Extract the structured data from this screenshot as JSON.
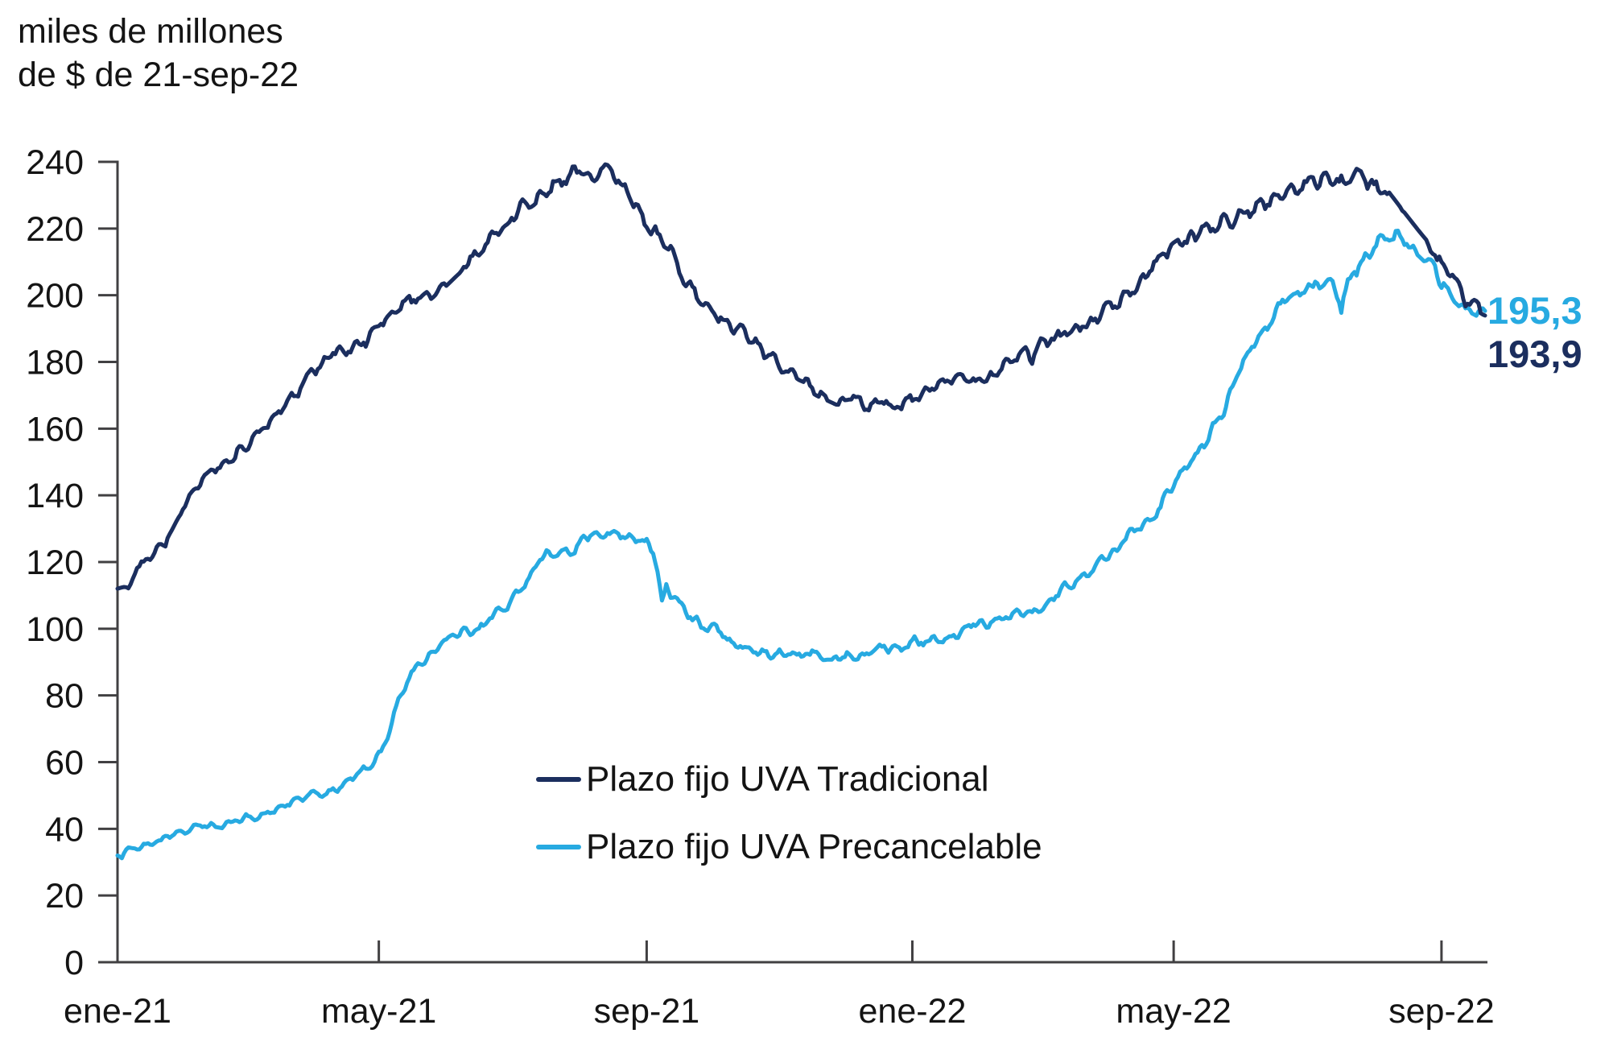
{
  "title": {
    "line1": "miles de millones",
    "line2": "de $ de 21-sep-22"
  },
  "colors": {
    "tradicional": "#1B2E5E",
    "precancelable": "#27AAE1",
    "axis": "#414042",
    "text": "#141414"
  },
  "legend": {
    "items": [
      {
        "id": "tradicional",
        "label": "Plazo fijo UVA Tradicional",
        "color": "#1B2E5E"
      },
      {
        "id": "precancelable",
        "label": "Plazo fijo UVA Precancelable",
        "color": "#27AAE1"
      }
    ]
  },
  "end_labels": {
    "precancelable": {
      "text": "195,3",
      "color": "#27AAE1"
    },
    "tradicional": {
      "text": "193,9",
      "color": "#1B2E5E"
    }
  },
  "chart_data": {
    "type": "line",
    "title": "miles de millones de $ de 21-sep-22",
    "x_unit": "days since 2021-01-01 (daily series ending 2022-09-21)",
    "ylim": [
      0,
      240
    ],
    "y_tick_step": 20,
    "y_tick_labels": [
      "0",
      "20",
      "40",
      "60",
      "80",
      "100",
      "120",
      "140",
      "160",
      "180",
      "200",
      "220",
      "240"
    ],
    "x_ticks": [
      {
        "label": "ene-21",
        "day": 0
      },
      {
        "label": "may-21",
        "day": 120
      },
      {
        "label": "sep-21",
        "day": 243
      },
      {
        "label": "ene-22",
        "day": 365
      },
      {
        "label": "may-22",
        "day": 485
      },
      {
        "label": "sep-22",
        "day": 608
      }
    ],
    "end_day": 628,
    "grid": false,
    "legend_position": "inside-bottom-center",
    "series": [
      {
        "name": "Plazo fijo UVA Precancelable",
        "id": "precancelable",
        "color": "#27AAE1",
        "final_value": 195.3,
        "points": [
          [
            0,
            32
          ],
          [
            2,
            31.5
          ],
          [
            4,
            34
          ],
          [
            8,
            35
          ],
          [
            15,
            36
          ],
          [
            22,
            37
          ],
          [
            31,
            38
          ],
          [
            38,
            39.5
          ],
          [
            45,
            40.5
          ],
          [
            52,
            42
          ],
          [
            59,
            43
          ],
          [
            66,
            44.5
          ],
          [
            73,
            46
          ],
          [
            80,
            48
          ],
          [
            87,
            49.5
          ],
          [
            93,
            51
          ],
          [
            100,
            53
          ],
          [
            107,
            55
          ],
          [
            113,
            57
          ],
          [
            118,
            59
          ],
          [
            121,
            62
          ],
          [
            124,
            68
          ],
          [
            127,
            74
          ],
          [
            130,
            80
          ],
          [
            133,
            85
          ],
          [
            136,
            88
          ],
          [
            140,
            90
          ],
          [
            145,
            92
          ],
          [
            151,
            95
          ],
          [
            158,
            98
          ],
          [
            165,
            101
          ],
          [
            172,
            104
          ],
          [
            180,
            108
          ],
          [
            187,
            112
          ],
          [
            190,
            116
          ],
          [
            194,
            120
          ],
          [
            199,
            122
          ],
          [
            205,
            124
          ],
          [
            212,
            126
          ],
          [
            219,
            127.5
          ],
          [
            224,
            128.5
          ],
          [
            228,
            129
          ],
          [
            232,
            128
          ],
          [
            236,
            127.5
          ],
          [
            240,
            127
          ],
          [
            243,
            126.5
          ],
          [
            246,
            124
          ],
          [
            248,
            118
          ],
          [
            250,
            109
          ],
          [
            252,
            114
          ],
          [
            254,
            112
          ],
          [
            258,
            109
          ],
          [
            262,
            106
          ],
          [
            266,
            103
          ],
          [
            271,
            100
          ],
          [
            276,
            98
          ],
          [
            281,
            96
          ],
          [
            287,
            94
          ],
          [
            293,
            93
          ],
          [
            300,
            92
          ],
          [
            307,
            91.5
          ],
          [
            314,
            92
          ],
          [
            321,
            92.5
          ],
          [
            330,
            93
          ],
          [
            340,
            93.5
          ],
          [
            350,
            94
          ],
          [
            358,
            94.5
          ],
          [
            365,
            95.5
          ],
          [
            372,
            96.5
          ],
          [
            379,
            97.5
          ],
          [
            386,
            99
          ],
          [
            393,
            100.5
          ],
          [
            400,
            102
          ],
          [
            407,
            104
          ],
          [
            414,
            105.5
          ],
          [
            420,
            107
          ],
          [
            424,
            108
          ],
          [
            431,
            111
          ],
          [
            438,
            114
          ],
          [
            445,
            118
          ],
          [
            452,
            122
          ],
          [
            459,
            126
          ],
          [
            466,
            130
          ],
          [
            473,
            134
          ],
          [
            478,
            137
          ],
          [
            485,
            143
          ],
          [
            490,
            148
          ],
          [
            495,
            153
          ],
          [
            500,
            158
          ],
          [
            505,
            163
          ],
          [
            510,
            169
          ],
          [
            515,
            178
          ],
          [
            520,
            184
          ],
          [
            525,
            189
          ],
          [
            530,
            193
          ],
          [
            535,
            196
          ],
          [
            540,
            198
          ],
          [
            545,
            200
          ],
          [
            550,
            202
          ],
          [
            553,
            203
          ],
          [
            556,
            205
          ],
          [
            559,
            203
          ],
          [
            562,
            197
          ],
          [
            564,
            202
          ],
          [
            567,
            206
          ],
          [
            570,
            208
          ],
          [
            574,
            211
          ],
          [
            578,
            214
          ],
          [
            582,
            216.5
          ],
          [
            585,
            218
          ],
          [
            588,
            219
          ],
          [
            592,
            217.5
          ],
          [
            596,
            215.5
          ],
          [
            600,
            213
          ],
          [
            604,
            209
          ],
          [
            608,
            205
          ],
          [
            612,
            202
          ],
          [
            616,
            199.5
          ],
          [
            620,
            198
          ],
          [
            623,
            197
          ],
          [
            626,
            196
          ],
          [
            628,
            195.3
          ]
        ]
      },
      {
        "name": "Plazo fijo UVA Tradicional",
        "id": "tradicional",
        "color": "#1B2E5E",
        "final_value": 193.9,
        "points": [
          [
            0,
            112
          ],
          [
            5,
            113
          ],
          [
            8,
            118
          ],
          [
            15,
            122
          ],
          [
            22,
            127
          ],
          [
            28,
            133
          ],
          [
            34,
            140
          ],
          [
            45,
            146
          ],
          [
            52,
            150
          ],
          [
            59,
            156
          ],
          [
            70,
            163
          ],
          [
            80,
            170
          ],
          [
            93,
            179
          ],
          [
            100,
            182
          ],
          [
            110,
            186
          ],
          [
            120,
            188
          ],
          [
            127,
            193
          ],
          [
            134,
            197
          ],
          [
            141,
            200
          ],
          [
            150,
            205
          ],
          [
            158,
            210
          ],
          [
            165,
            214
          ],
          [
            172,
            219
          ],
          [
            180,
            224
          ],
          [
            187,
            228
          ],
          [
            194,
            231
          ],
          [
            200,
            234
          ],
          [
            207,
            236.5
          ],
          [
            212,
            237.5
          ],
          [
            218,
            236
          ],
          [
            224,
            236.5
          ],
          [
            230,
            235
          ],
          [
            235,
            232
          ],
          [
            240,
            225
          ],
          [
            243,
            221
          ],
          [
            247,
            218
          ],
          [
            251,
            215
          ],
          [
            255,
            211
          ],
          [
            259,
            207
          ],
          [
            263,
            204
          ],
          [
            268,
            200
          ],
          [
            273,
            196
          ],
          [
            278,
            193
          ],
          [
            285,
            189
          ],
          [
            292,
            186
          ],
          [
            299,
            181
          ],
          [
            306,
            177
          ],
          [
            313,
            175
          ],
          [
            320,
            173
          ],
          [
            330,
            170
          ],
          [
            340,
            168
          ],
          [
            348,
            166.5
          ],
          [
            355,
            165.5
          ],
          [
            362,
            166.5
          ],
          [
            365,
            168
          ],
          [
            372,
            170
          ],
          [
            379,
            172
          ],
          [
            386,
            173.5
          ],
          [
            393,
            174
          ],
          [
            400,
            176
          ],
          [
            407,
            178.5
          ],
          [
            414,
            181
          ],
          [
            418,
            183
          ],
          [
            420,
            180
          ],
          [
            423,
            184
          ],
          [
            430,
            186
          ],
          [
            438,
            189
          ],
          [
            445,
            192
          ],
          [
            452,
            195
          ],
          [
            459,
            199
          ],
          [
            466,
            202
          ],
          [
            473,
            206
          ],
          [
            480,
            210
          ],
          [
            485,
            213
          ],
          [
            492,
            216
          ],
          [
            499,
            219
          ],
          [
            506,
            221
          ],
          [
            513,
            223
          ],
          [
            520,
            225
          ],
          [
            527,
            227
          ],
          [
            534,
            229
          ],
          [
            541,
            231
          ],
          [
            546,
            233
          ],
          [
            552,
            233.5
          ],
          [
            558,
            234.5
          ],
          [
            563,
            233.5
          ],
          [
            568,
            235.5
          ],
          [
            572,
            234
          ],
          [
            577,
            232
          ],
          [
            584,
            228
          ],
          [
            591,
            222
          ],
          [
            597,
            217
          ],
          [
            602,
            213
          ],
          [
            608,
            209
          ],
          [
            613,
            204
          ],
          [
            617,
            200
          ],
          [
            620,
            198
          ],
          [
            623,
            196
          ],
          [
            626,
            194.5
          ],
          [
            628,
            193.9
          ]
        ]
      }
    ]
  }
}
